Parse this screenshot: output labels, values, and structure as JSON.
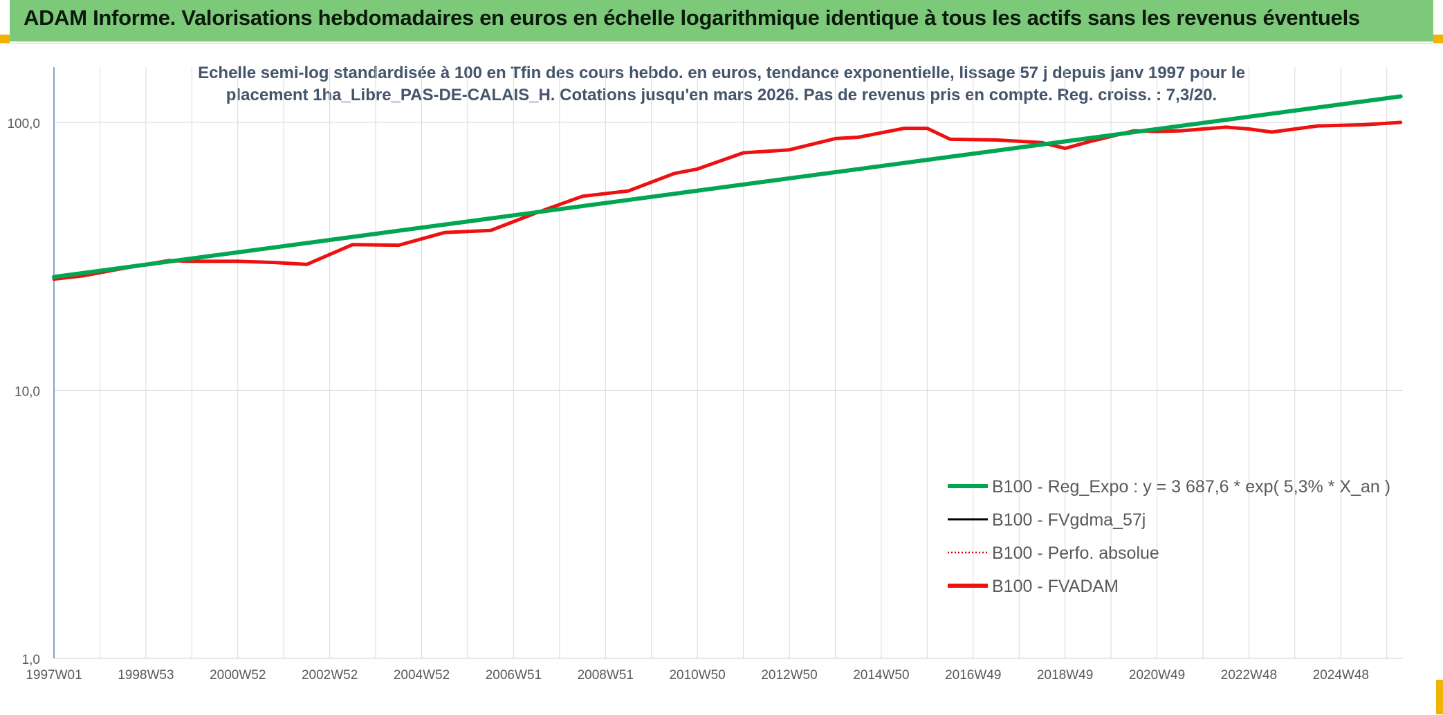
{
  "banner": {
    "title": "ADAM Informe. Valorisations hebdomadaires en euros en échelle logarithmique identique à tous les actifs sans les revenus éventuels"
  },
  "colors": {
    "banner_bg": "#7dc97a",
    "corner_accent": "#f0b400",
    "regression": "#00a651",
    "fvadam": "#ee1111",
    "fvgdma": "#000000",
    "perfo": "#cc0000"
  },
  "chart_data": {
    "type": "line",
    "title_lines": [
      "Echelle semi-log standardisée à 100 en Tfin des cours hebdo. en euros, tendance exponentielle, lissage 57 j depuis janv 1997 pour le",
      "placement 1ha_Libre_PAS-DE-CALAIS_H. Cotations jusqu'en mars 2026. Pas de revenus pris en compte. Reg. croiss. : 7,3/20."
    ],
    "y_scale": "log",
    "ylim": [
      1,
      200
    ],
    "y_ticks": [
      {
        "value": 1,
        "label": "1,0"
      },
      {
        "value": 10,
        "label": "10,0"
      },
      {
        "value": 100,
        "label": "100,0"
      }
    ],
    "xlim": [
      1997.0,
      2026.35
    ],
    "x_ticks": [
      {
        "value": 1997.0,
        "label": "1997W01"
      },
      {
        "value": 1999.0,
        "label": "1998W53"
      },
      {
        "value": 2001.0,
        "label": "2000W52"
      },
      {
        "value": 2003.0,
        "label": "2002W52"
      },
      {
        "value": 2005.0,
        "label": "2004W52"
      },
      {
        "value": 2007.0,
        "label": "2006W51"
      },
      {
        "value": 2009.0,
        "label": "2008W51"
      },
      {
        "value": 2011.0,
        "label": "2010W50"
      },
      {
        "value": 2013.0,
        "label": "2012W50"
      },
      {
        "value": 2015.0,
        "label": "2014W50"
      },
      {
        "value": 2017.0,
        "label": "2016W49"
      },
      {
        "value": 2019.0,
        "label": "2018W49"
      },
      {
        "value": 2021.0,
        "label": "2020W49"
      },
      {
        "value": 2023.0,
        "label": "2022W48"
      },
      {
        "value": 2025.0,
        "label": "2024W48"
      }
    ],
    "grid": true,
    "legend_position": "lower-right",
    "series": [
      {
        "name": "B100 - Reg_Expo : y = 3 687,6 * exp( 5,3% *  X_an )",
        "color": "#00a651",
        "style": "solid-thick",
        "x": [
          1997.0,
          2026.3
        ],
        "y": [
          26.5,
          125.0
        ]
      },
      {
        "name": "B100 - FVgdma_57j",
        "color": "#000000",
        "style": "solid-thin",
        "x": [],
        "y": []
      },
      {
        "name": "B100 - Perfo. absolue",
        "color": "#cc0000",
        "style": "dotted",
        "x": [],
        "y": []
      },
      {
        "name": "B100 - FVADAM",
        "color": "#ee1111",
        "style": "solid-thick",
        "x": [
          1997.0,
          1997.6,
          1998.5,
          1999.5,
          2000.0,
          2001.0,
          2001.8,
          2002.5,
          2003.5,
          2004.5,
          2005.5,
          2006.5,
          2007.5,
          2008.5,
          2009.5,
          2010.5,
          2011.0,
          2012.0,
          2013.0,
          2014.0,
          2014.5,
          2015.5,
          2016.0,
          2016.5,
          2017.5,
          2018.5,
          2019.0,
          2019.5,
          2020.5,
          2021.0,
          2021.5,
          2022.5,
          2023.0,
          2023.5,
          2024.5,
          2025.5,
          2026.3
        ],
        "y": [
          26.0,
          26.7,
          28.5,
          30.5,
          30.3,
          30.3,
          30.0,
          29.5,
          35.0,
          34.8,
          38.8,
          39.5,
          46.0,
          53.0,
          55.5,
          64.5,
          67.0,
          77.0,
          79.0,
          87.0,
          88.0,
          95.0,
          95.0,
          86.5,
          86.0,
          84.0,
          80.0,
          84.5,
          93.0,
          92.5,
          93.0,
          96.0,
          94.5,
          92.0,
          97.0,
          98.0,
          100.0
        ]
      }
    ]
  }
}
